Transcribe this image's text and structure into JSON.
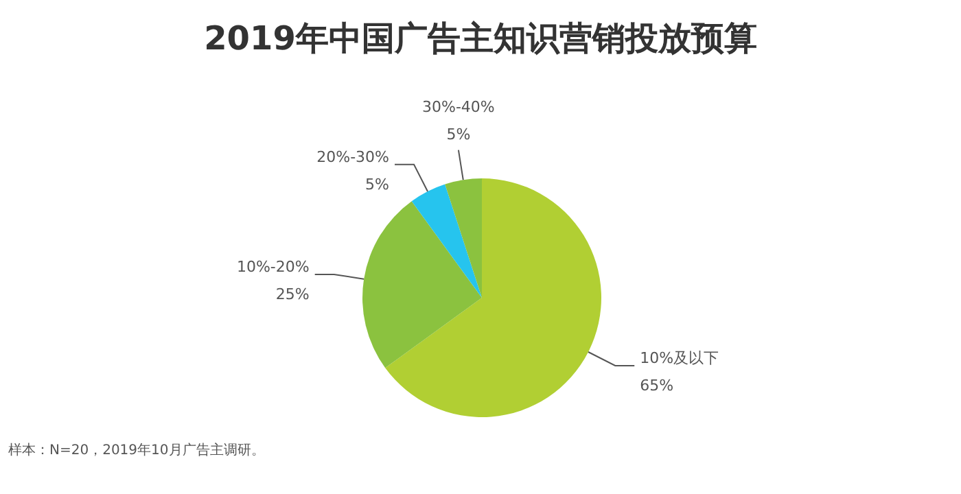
{
  "chart_data": {
    "type": "pie",
    "title": "2019年中国广告主知识营销投放预算",
    "categories": [
      "10%及以下",
      "10%-20%",
      "20%-30%",
      "30%-40%"
    ],
    "values": [
      65,
      25,
      5,
      5
    ],
    "value_labels": [
      "65%",
      "25%",
      "5%",
      "5%"
    ],
    "colors": [
      "#b1cf33",
      "#8bc23f",
      "#26c4ee",
      "#8bc23f"
    ],
    "annotations": [
      "样本：N=20，2019年10月广告主调研。"
    ]
  }
}
